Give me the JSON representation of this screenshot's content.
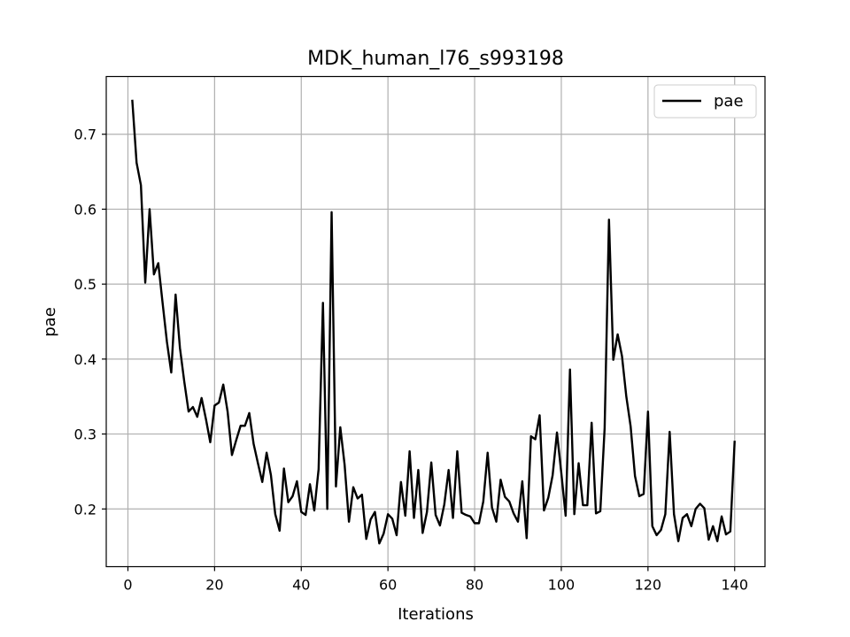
{
  "chart_data": {
    "type": "line",
    "title": "MDK_human_l76_s993198",
    "xlabel": "Iterations",
    "ylabel": "pae",
    "xlim": [
      -5,
      147
    ],
    "ylim": [
      0.123,
      0.777
    ],
    "xticks": [
      0,
      20,
      40,
      60,
      80,
      100,
      120,
      140
    ],
    "yticks": [
      0.2,
      0.3,
      0.4,
      0.5,
      0.6,
      0.7
    ],
    "grid": true,
    "legend_position": "top-right",
    "series": [
      {
        "name": "pae",
        "color": "#000000",
        "x": [
          1,
          2,
          3,
          4,
          5,
          6,
          7,
          8,
          9,
          10,
          11,
          12,
          13,
          14,
          15,
          16,
          17,
          18,
          19,
          20,
          21,
          22,
          23,
          24,
          25,
          26,
          27,
          28,
          29,
          30,
          31,
          32,
          33,
          34,
          35,
          36,
          37,
          38,
          39,
          40,
          41,
          42,
          43,
          44,
          45,
          46,
          47,
          48,
          49,
          50,
          51,
          52,
          53,
          54,
          55,
          56,
          57,
          58,
          59,
          60,
          61,
          62,
          63,
          64,
          65,
          66,
          67,
          68,
          69,
          70,
          71,
          72,
          73,
          74,
          75,
          76,
          77,
          78,
          79,
          80,
          81,
          82,
          83,
          84,
          85,
          86,
          87,
          88,
          89,
          90,
          91,
          92,
          93,
          94,
          95,
          96,
          97,
          98,
          99,
          100,
          101,
          102,
          103,
          104,
          105,
          106,
          107,
          108,
          109,
          110,
          111,
          112,
          113,
          114,
          115,
          116,
          117,
          118,
          119,
          120,
          121,
          122,
          123,
          124,
          125,
          126,
          127,
          128,
          129,
          130,
          131,
          132,
          133,
          134,
          135,
          136,
          137,
          138,
          139,
          140
        ],
        "y": [
          0.746,
          0.662,
          0.632,
          0.502,
          0.6,
          0.513,
          0.528,
          0.475,
          0.423,
          0.382,
          0.486,
          0.415,
          0.37,
          0.33,
          0.336,
          0.323,
          0.348,
          0.32,
          0.289,
          0.338,
          0.342,
          0.366,
          0.33,
          0.272,
          0.292,
          0.311,
          0.311,
          0.328,
          0.287,
          0.261,
          0.236,
          0.275,
          0.245,
          0.193,
          0.171,
          0.254,
          0.209,
          0.217,
          0.237,
          0.196,
          0.192,
          0.233,
          0.198,
          0.253,
          0.475,
          0.2,
          0.596,
          0.23,
          0.309,
          0.259,
          0.183,
          0.229,
          0.214,
          0.219,
          0.16,
          0.186,
          0.196,
          0.154,
          0.167,
          0.193,
          0.187,
          0.165,
          0.236,
          0.191,
          0.277,
          0.188,
          0.252,
          0.168,
          0.196,
          0.262,
          0.192,
          0.178,
          0.206,
          0.252,
          0.188,
          0.277,
          0.195,
          0.192,
          0.19,
          0.181,
          0.181,
          0.21,
          0.275,
          0.202,
          0.183,
          0.239,
          0.216,
          0.21,
          0.194,
          0.183,
          0.237,
          0.161,
          0.297,
          0.293,
          0.325,
          0.198,
          0.215,
          0.245,
          0.302,
          0.248,
          0.191,
          0.386,
          0.193,
          0.261,
          0.205,
          0.205,
          0.315,
          0.194,
          0.197,
          0.308,
          0.586,
          0.399,
          0.433,
          0.404,
          0.35,
          0.31,
          0.244,
          0.217,
          0.22,
          0.33,
          0.177,
          0.165,
          0.172,
          0.193,
          0.303,
          0.193,
          0.157,
          0.188,
          0.193,
          0.177,
          0.2,
          0.207,
          0.201,
          0.159,
          0.177,
          0.157,
          0.19,
          0.166,
          0.17,
          0.291
        ]
      }
    ]
  }
}
